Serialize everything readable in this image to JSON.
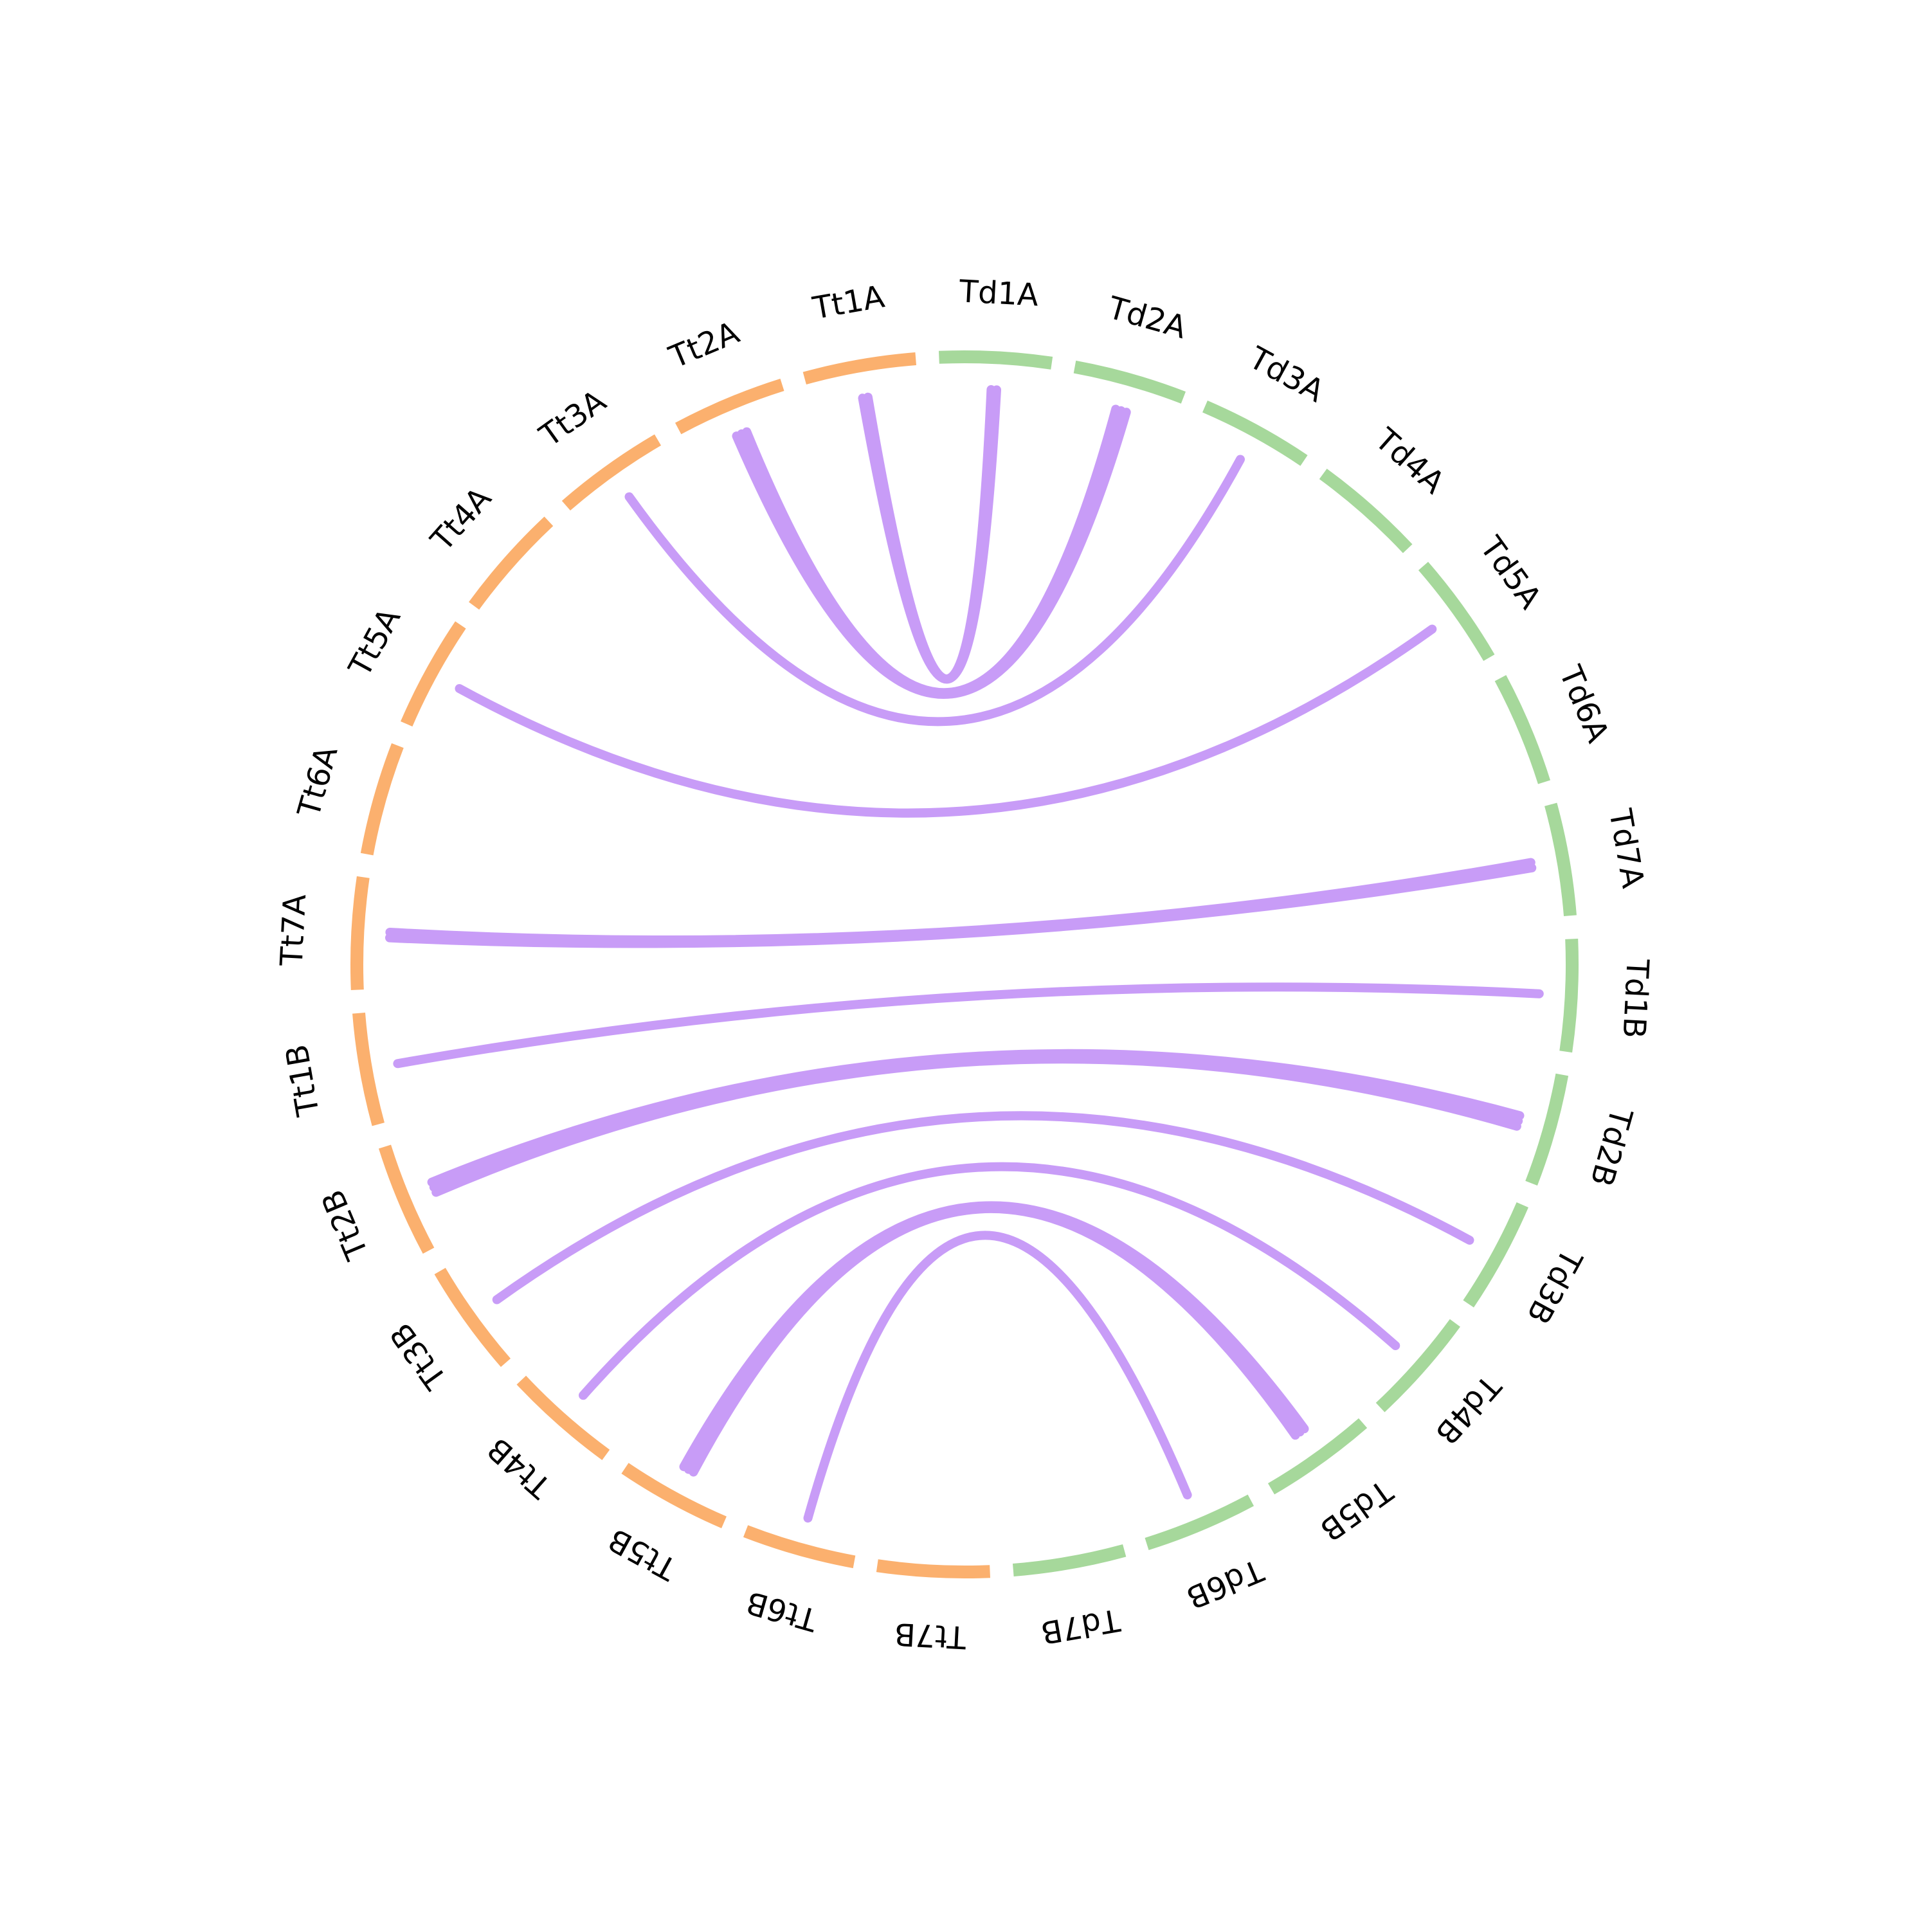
{
  "colors": {
    "genome_a": "#a6d89b",
    "genome_b": "#fbb06e",
    "link": "#c89cf7",
    "label": "#000000",
    "background": "#ffffff"
  },
  "chromosomes": [
    {
      "id": "Td1A",
      "label": "Td1A",
      "group": "genome_a"
    },
    {
      "id": "Td2A",
      "label": "Td2A",
      "group": "genome_a"
    },
    {
      "id": "Td3A",
      "label": "Td3A",
      "group": "genome_a"
    },
    {
      "id": "Td4A",
      "label": "Td4A",
      "group": "genome_a"
    },
    {
      "id": "Td5A",
      "label": "Td5A",
      "group": "genome_a"
    },
    {
      "id": "Td6A",
      "label": "Td6A",
      "group": "genome_a"
    },
    {
      "id": "Td7A",
      "label": "Td7A",
      "group": "genome_a"
    },
    {
      "id": "Td1B",
      "label": "Td1B",
      "group": "genome_a"
    },
    {
      "id": "Td2B",
      "label": "Td2B",
      "group": "genome_a"
    },
    {
      "id": "Td3B",
      "label": "Td3B",
      "group": "genome_a"
    },
    {
      "id": "Td4B",
      "label": "Td4B",
      "group": "genome_a"
    },
    {
      "id": "Td5B",
      "label": "Td5B",
      "group": "genome_a"
    },
    {
      "id": "Td6B",
      "label": "Td6B",
      "group": "genome_a"
    },
    {
      "id": "Td7B",
      "label": "Td7B",
      "group": "genome_a"
    },
    {
      "id": "Tt7B",
      "label": "Tt7B",
      "group": "genome_b"
    },
    {
      "id": "Tt6B",
      "label": "Tt6B",
      "group": "genome_b"
    },
    {
      "id": "Tt5B",
      "label": "Tt5B",
      "group": "genome_b"
    },
    {
      "id": "Tt4B",
      "label": "Tt4B",
      "group": "genome_b"
    },
    {
      "id": "Tt3B",
      "label": "Tt3B",
      "group": "genome_b"
    },
    {
      "id": "Tt2B",
      "label": "Tt2B",
      "group": "genome_b"
    },
    {
      "id": "Tt1B",
      "label": "Tt1B",
      "group": "genome_b"
    },
    {
      "id": "Tt7A",
      "label": "Tt7A",
      "group": "genome_b"
    },
    {
      "id": "Tt6A",
      "label": "Tt6A",
      "group": "genome_b"
    },
    {
      "id": "Tt5A",
      "label": "Tt5A",
      "group": "genome_b"
    },
    {
      "id": "Tt4A",
      "label": "Tt4A",
      "group": "genome_b"
    },
    {
      "id": "Tt3A",
      "label": "Tt3A",
      "group": "genome_b"
    },
    {
      "id": "Tt2A",
      "label": "Tt2A",
      "group": "genome_b"
    },
    {
      "id": "Tt1A",
      "label": "Tt1A",
      "group": "genome_b"
    }
  ],
  "links": [
    {
      "from": "Td1A",
      "to": "Tt1A",
      "count": 2
    },
    {
      "from": "Td2A",
      "to": "Tt2A",
      "count": 3
    },
    {
      "from": "Td3A",
      "to": "Tt3A",
      "count": 1
    },
    {
      "from": "Td5A",
      "to": "Tt5A",
      "count": 1
    },
    {
      "from": "Td7A",
      "to": "Tt7A",
      "count": 2
    },
    {
      "from": "Td1B",
      "to": "Tt1B",
      "count": 1
    },
    {
      "from": "Td2B",
      "to": "Tt2B",
      "count": 3
    },
    {
      "from": "Td3B",
      "to": "Tt3B",
      "count": 1
    },
    {
      "from": "Td4B",
      "to": "Tt4B",
      "count": 1
    },
    {
      "from": "Td5B",
      "to": "Tt5B",
      "count": 3
    },
    {
      "from": "Td6B",
      "to": "Tt6B",
      "count": 1
    }
  ]
}
